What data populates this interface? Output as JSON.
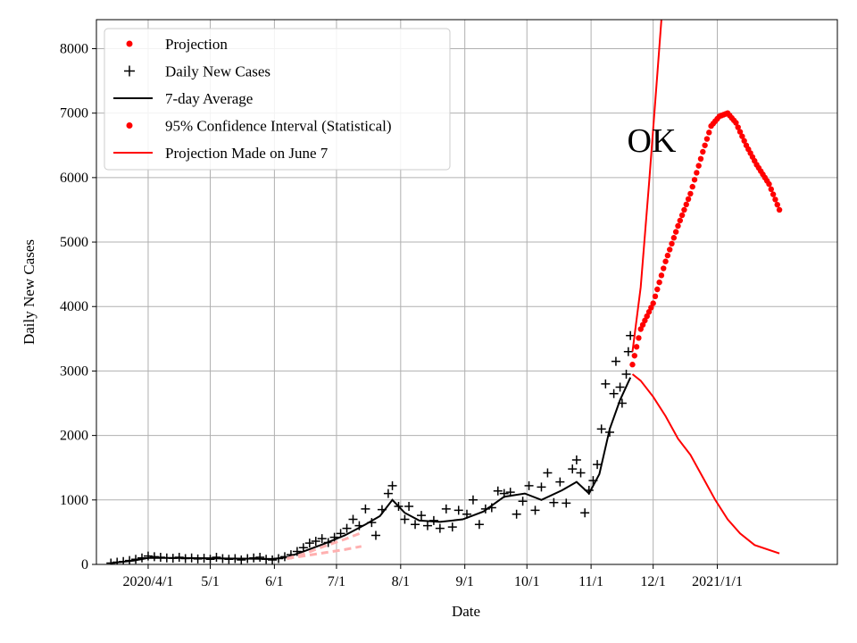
{
  "chart_data": {
    "type": "line",
    "xlabel": "Date",
    "ylabel": "Daily New Cases",
    "annotation": "OK",
    "grid": true,
    "legend_position": "top-left",
    "x_range": [
      "2020-03-07",
      "2021-02-28"
    ],
    "ylim": [
      0,
      8450
    ],
    "x_ticks": [
      {
        "date": "2020-04-01",
        "label": "2020/4/1"
      },
      {
        "date": "2020-05-01",
        "label": "5/1"
      },
      {
        "date": "2020-06-01",
        "label": "6/1"
      },
      {
        "date": "2020-07-01",
        "label": "7/1"
      },
      {
        "date": "2020-08-01",
        "label": "8/1"
      },
      {
        "date": "2020-09-01",
        "label": "9/1"
      },
      {
        "date": "2020-10-01",
        "label": "10/1"
      },
      {
        "date": "2020-11-01",
        "label": "11/1"
      },
      {
        "date": "2020-12-01",
        "label": "12/1"
      },
      {
        "date": "2021-01-01",
        "label": "2021/1/1"
      }
    ],
    "y_ticks": [
      0,
      1000,
      2000,
      3000,
      4000,
      5000,
      6000,
      7000,
      8000
    ],
    "legend": [
      {
        "label": "Projection",
        "marker": "dot",
        "color": "#ff0000"
      },
      {
        "label": "Daily New Cases",
        "marker": "plus",
        "color": "#000000"
      },
      {
        "label": "7-day Average",
        "marker": "line",
        "color": "#000000"
      },
      {
        "label": "95% Confidence Interval (Statistical)",
        "marker": "dot",
        "color": "#ff0000"
      },
      {
        "label": "Projection Made on June 7",
        "marker": "line",
        "color": "#ff0000"
      }
    ],
    "series": [
      {
        "name": "Daily New Cases",
        "style": "plus",
        "color": "#000000",
        "points": [
          [
            "2020-03-14",
            20
          ],
          [
            "2020-03-17",
            35
          ],
          [
            "2020-03-20",
            45
          ],
          [
            "2020-03-23",
            60
          ],
          [
            "2020-03-26",
            80
          ],
          [
            "2020-03-29",
            100
          ],
          [
            "2020-04-01",
            130
          ],
          [
            "2020-04-04",
            120
          ],
          [
            "2020-04-07",
            110
          ],
          [
            "2020-04-10",
            100
          ],
          [
            "2020-04-13",
            95
          ],
          [
            "2020-04-16",
            110
          ],
          [
            "2020-04-19",
            90
          ],
          [
            "2020-04-22",
            100
          ],
          [
            "2020-04-25",
            85
          ],
          [
            "2020-04-28",
            95
          ],
          [
            "2020-05-01",
            80
          ],
          [
            "2020-05-04",
            110
          ],
          [
            "2020-05-07",
            90
          ],
          [
            "2020-05-10",
            80
          ],
          [
            "2020-05-13",
            90
          ],
          [
            "2020-05-16",
            70
          ],
          [
            "2020-05-19",
            90
          ],
          [
            "2020-05-22",
            100
          ],
          [
            "2020-05-25",
            110
          ],
          [
            "2020-05-28",
            80
          ],
          [
            "2020-05-31",
            70
          ],
          [
            "2020-06-03",
            90
          ],
          [
            "2020-06-06",
            120
          ],
          [
            "2020-06-09",
            150
          ],
          [
            "2020-06-12",
            200
          ],
          [
            "2020-06-15",
            260
          ],
          [
            "2020-06-18",
            330
          ],
          [
            "2020-06-21",
            360
          ],
          [
            "2020-06-24",
            400
          ],
          [
            "2020-06-27",
            340
          ],
          [
            "2020-06-30",
            420
          ],
          [
            "2020-07-03",
            480
          ],
          [
            "2020-07-06",
            560
          ],
          [
            "2020-07-09",
            700
          ],
          [
            "2020-07-12",
            600
          ],
          [
            "2020-07-15",
            860
          ],
          [
            "2020-07-18",
            650
          ],
          [
            "2020-07-20",
            450
          ],
          [
            "2020-07-23",
            850
          ],
          [
            "2020-07-26",
            1100
          ],
          [
            "2020-07-28",
            1220
          ],
          [
            "2020-07-31",
            900
          ],
          [
            "2020-08-03",
            700
          ],
          [
            "2020-08-05",
            900
          ],
          [
            "2020-08-08",
            620
          ],
          [
            "2020-08-11",
            760
          ],
          [
            "2020-08-14",
            600
          ],
          [
            "2020-08-17",
            680
          ],
          [
            "2020-08-20",
            560
          ],
          [
            "2020-08-23",
            860
          ],
          [
            "2020-08-26",
            580
          ],
          [
            "2020-08-29",
            840
          ],
          [
            "2020-09-02",
            780
          ],
          [
            "2020-09-05",
            1000
          ],
          [
            "2020-09-08",
            620
          ],
          [
            "2020-09-11",
            860
          ],
          [
            "2020-09-14",
            880
          ],
          [
            "2020-09-17",
            1140
          ],
          [
            "2020-09-20",
            1100
          ],
          [
            "2020-09-23",
            1120
          ],
          [
            "2020-09-26",
            780
          ],
          [
            "2020-09-29",
            980
          ],
          [
            "2020-10-02",
            1220
          ],
          [
            "2020-10-05",
            840
          ],
          [
            "2020-10-08",
            1200
          ],
          [
            "2020-10-11",
            1420
          ],
          [
            "2020-10-14",
            960
          ],
          [
            "2020-10-17",
            1280
          ],
          [
            "2020-10-20",
            950
          ],
          [
            "2020-10-23",
            1480
          ],
          [
            "2020-10-25",
            1620
          ],
          [
            "2020-10-27",
            1420
          ],
          [
            "2020-10-29",
            800
          ],
          [
            "2020-10-31",
            1150
          ],
          [
            "2020-11-02",
            1300
          ],
          [
            "2020-11-04",
            1550
          ],
          [
            "2020-11-06",
            2100
          ],
          [
            "2020-11-08",
            2800
          ],
          [
            "2020-11-10",
            2050
          ],
          [
            "2020-11-12",
            2650
          ],
          [
            "2020-11-13",
            3150
          ],
          [
            "2020-11-15",
            2750
          ],
          [
            "2020-11-16",
            2500
          ],
          [
            "2020-11-18",
            2950
          ],
          [
            "2020-11-19",
            3300
          ],
          [
            "2020-11-20",
            3550
          ]
        ]
      },
      {
        "name": "7-day Average",
        "style": "line",
        "color": "#000000",
        "points": [
          [
            "2020-03-14",
            20
          ],
          [
            "2020-03-25",
            60
          ],
          [
            "2020-04-01",
            100
          ],
          [
            "2020-04-15",
            100
          ],
          [
            "2020-05-01",
            95
          ],
          [
            "2020-05-15",
            90
          ],
          [
            "2020-05-31",
            85
          ],
          [
            "2020-06-07",
            110
          ],
          [
            "2020-06-15",
            200
          ],
          [
            "2020-06-25",
            320
          ],
          [
            "2020-07-05",
            450
          ],
          [
            "2020-07-15",
            620
          ],
          [
            "2020-07-22",
            750
          ],
          [
            "2020-07-28",
            1000
          ],
          [
            "2020-08-03",
            800
          ],
          [
            "2020-08-10",
            680
          ],
          [
            "2020-08-20",
            660
          ],
          [
            "2020-08-31",
            700
          ],
          [
            "2020-09-10",
            820
          ],
          [
            "2020-09-20",
            1050
          ],
          [
            "2020-09-30",
            1100
          ],
          [
            "2020-10-08",
            1000
          ],
          [
            "2020-10-18",
            1150
          ],
          [
            "2020-10-25",
            1280
          ],
          [
            "2020-10-31",
            1100
          ],
          [
            "2020-11-05",
            1400
          ],
          [
            "2020-11-10",
            2100
          ],
          [
            "2020-11-15",
            2550
          ],
          [
            "2020-11-20",
            2900
          ]
        ]
      },
      {
        "name": "Projection",
        "style": "dots",
        "color": "#ff0000",
        "points": [
          [
            "2020-11-21",
            3100
          ],
          [
            "2020-11-25",
            3650
          ],
          [
            "2020-12-01",
            4050
          ],
          [
            "2020-12-07",
            4700
          ],
          [
            "2020-12-13",
            5250
          ],
          [
            "2020-12-19",
            5750
          ],
          [
            "2020-12-25",
            6400
          ],
          [
            "2020-12-29",
            6800
          ],
          [
            "2021-01-02",
            6950
          ],
          [
            "2021-01-06",
            7000
          ],
          [
            "2021-01-10",
            6850
          ],
          [
            "2021-01-15",
            6500
          ],
          [
            "2021-01-20",
            6200
          ],
          [
            "2021-01-26",
            5900
          ],
          [
            "2021-01-31",
            5500
          ]
        ]
      },
      {
        "name": "Projection Made on June 7",
        "style": "line",
        "color": "#ff0000",
        "points": [
          [
            "2020-11-21",
            2950
          ],
          [
            "2020-11-25",
            2850
          ],
          [
            "2020-12-01",
            2600
          ],
          [
            "2020-12-07",
            2300
          ],
          [
            "2020-12-13",
            1950
          ],
          [
            "2020-12-19",
            1700
          ],
          [
            "2020-12-25",
            1350
          ],
          [
            "2020-12-31",
            1000
          ],
          [
            "2021-01-06",
            700
          ],
          [
            "2021-01-12",
            480
          ],
          [
            "2021-01-19",
            300
          ],
          [
            "2021-01-31",
            170
          ]
        ]
      },
      {
        "name": "Projection Made on June 7",
        "style": "line",
        "color": "#ff0000",
        "points": [
          [
            "2020-11-21",
            3300
          ],
          [
            "2020-11-25",
            4300
          ],
          [
            "2020-11-29",
            5900
          ],
          [
            "2020-12-03",
            7600
          ],
          [
            "2020-12-05",
            8450
          ]
        ]
      },
      {
        "name": "95% Confidence Interval (Statistical)",
        "style": "dashed",
        "color": "#ffb0b0",
        "points": [
          [
            "2020-06-07",
            90
          ],
          [
            "2020-06-15",
            130
          ],
          [
            "2020-06-25",
            180
          ],
          [
            "2020-07-05",
            230
          ],
          [
            "2020-07-13",
            280
          ]
        ]
      },
      {
        "name": "95% Confidence Interval (Statistical)",
        "style": "dashed",
        "color": "#ffb0b0",
        "points": [
          [
            "2020-06-07",
            90
          ],
          [
            "2020-06-15",
            160
          ],
          [
            "2020-06-25",
            280
          ],
          [
            "2020-07-05",
            390
          ],
          [
            "2020-07-13",
            490
          ]
        ]
      }
    ]
  }
}
